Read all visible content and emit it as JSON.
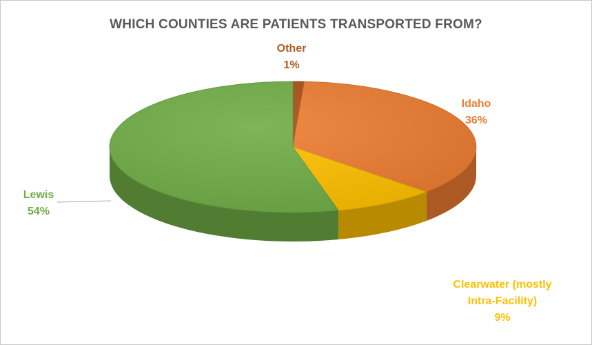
{
  "chart_data": {
    "type": "pie",
    "title": "WHICH COUNTIES ARE PATIENTS TRANSPORTED FROM?",
    "slices": [
      {
        "key": "other",
        "label": "Other",
        "value": 1,
        "percent_label": "1%",
        "color": "#a94e14"
      },
      {
        "key": "idaho",
        "label": "Idaho",
        "value": 36,
        "percent_label": "36%",
        "color": "#ed7d31"
      },
      {
        "key": "clearwater",
        "label": "Clearwater (mostly Intra-Facility)",
        "label_lines": [
          "Clearwater (mostly",
          "Intra-Facility)"
        ],
        "value": 9,
        "percent_label": "9%",
        "color": "#ffc000"
      },
      {
        "key": "lewis",
        "label": "Lewis",
        "value": 54,
        "percent_label": "54%",
        "color": "#70ad47"
      }
    ],
    "legend": "none",
    "style": "3d"
  }
}
